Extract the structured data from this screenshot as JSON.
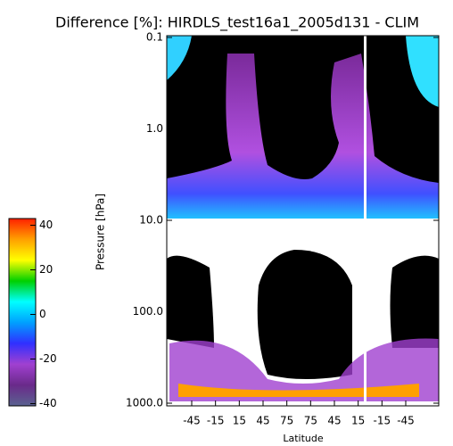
{
  "chart_data": {
    "type": "heatmap",
    "title": "Difference [%]: HIRDLS_test16a1_2005d131 - CLIM",
    "y_label": "Pressure [hPa]",
    "x_label": "Latitude",
    "log_y": true,
    "ylim": [
      1000,
      0.1
    ],
    "yticks": [
      {
        "value": 0.1,
        "label": "0.1"
      },
      {
        "value": 1,
        "label": "1.0"
      },
      {
        "value": 10,
        "label": "10.0"
      },
      {
        "value": 100,
        "label": "100.0"
      },
      {
        "value": 1000,
        "label": "1000.0"
      }
    ],
    "x_tick_labels": [
      "-45",
      "-15",
      "15",
      "45",
      "75",
      "75",
      "45",
      "15",
      "-15",
      "-45"
    ],
    "colorbar": {
      "clim": [
        -41,
        43
      ],
      "ticks": [
        40,
        20,
        0,
        -20,
        -40
      ],
      "colors": [
        "#5a6290",
        "#6a2a8a",
        "#a040d0",
        "#3030ff",
        "#00a0ff",
        "#00ffff",
        "#00d000",
        "#ffff00",
        "#ffa000",
        "#ff2000"
      ]
    }
  }
}
